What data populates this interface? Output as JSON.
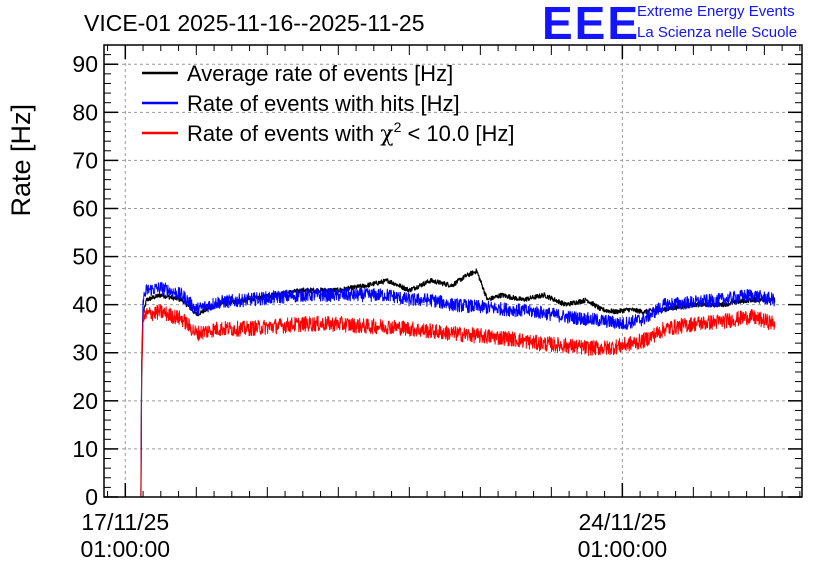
{
  "chart_data": {
    "type": "line",
    "title": "VICE-01 2025-11-16--2025-11-25",
    "logo": {
      "mark": "EEE",
      "line1": "Extreme Energy Events",
      "line2": "La Scienza nelle Scuole"
    },
    "ylabel": "Rate [Hz]",
    "xlabel": "",
    "ylim": [
      0,
      94
    ],
    "yticks": [
      "0",
      "10",
      "20",
      "30",
      "40",
      "50",
      "60",
      "70",
      "80",
      "90"
    ],
    "xlim_days": [
      -0.3,
      9.53
    ],
    "xticks": [
      {
        "day": 0,
        "label": "17/11/25",
        "sublabel": "01:00:00"
      },
      {
        "day": 7,
        "label": "24/11/25",
        "sublabel": "01:00:00"
      }
    ],
    "grid": true,
    "legend_position": "top-left",
    "series": [
      {
        "name": "Average rate of events [Hz]",
        "color": "#000000",
        "noise": 0.5,
        "x": [
          0.22,
          0.23,
          0.25,
          0.3,
          0.5,
          0.8,
          1.0,
          1.3,
          1.7,
          2.1,
          2.5,
          3.0,
          3.4,
          3.7,
          4.0,
          4.3,
          4.6,
          4.8,
          4.95,
          5.1,
          5.3,
          5.6,
          5.9,
          6.2,
          6.5,
          6.7,
          6.9,
          7.1,
          7.3,
          7.6,
          8.0,
          8.4,
          8.8,
          9.15
        ],
        "y": [
          0,
          25,
          38,
          41,
          42,
          41,
          38,
          40,
          41,
          42,
          43,
          43,
          44,
          45,
          43,
          45,
          44,
          46,
          47,
          41,
          42,
          41,
          42,
          40,
          41,
          39,
          38.5,
          39,
          38.5,
          39,
          40,
          40,
          41,
          41
        ]
      },
      {
        "name": "Rate of events with hits [Hz]",
        "color": "#0000ff",
        "noise": 1.4,
        "x": [
          0.22,
          0.23,
          0.25,
          0.3,
          0.5,
          0.8,
          1.0,
          1.3,
          1.7,
          2.1,
          2.5,
          3.0,
          3.4,
          3.7,
          4.0,
          4.3,
          4.6,
          5.0,
          5.4,
          5.8,
          6.2,
          6.5,
          6.8,
          7.0,
          7.3,
          7.6,
          8.0,
          8.4,
          8.8,
          9.15
        ],
        "y": [
          0,
          28,
          41,
          43,
          43.5,
          42,
          39,
          40.5,
          41,
          41.5,
          42,
          42,
          42,
          42,
          41,
          41,
          40,
          39.5,
          39,
          38.5,
          37.5,
          37,
          36.5,
          36,
          37,
          40,
          40.5,
          41,
          42,
          41
        ]
      },
      {
        "name": "Rate of events with χ² < 10.0 [Hz]",
        "color": "#ff0000",
        "noise": 1.6,
        "x": [
          0.22,
          0.23,
          0.25,
          0.3,
          0.5,
          0.8,
          1.0,
          1.3,
          1.7,
          2.1,
          2.5,
          3.0,
          3.4,
          3.7,
          4.0,
          4.3,
          4.6,
          5.0,
          5.4,
          5.8,
          6.2,
          6.5,
          6.8,
          7.0,
          7.3,
          7.6,
          8.0,
          8.4,
          8.8,
          9.15
        ],
        "y": [
          0,
          26,
          37,
          38,
          38.5,
          37,
          34,
          35,
          35,
          35.5,
          36,
          36,
          35.5,
          35.5,
          35,
          34.5,
          34,
          33.5,
          33,
          32,
          31.5,
          31,
          31,
          31.5,
          32.5,
          35,
          36,
          36.5,
          37.5,
          36
        ]
      }
    ],
    "legend_entries": [
      {
        "text": "Average rate of events [Hz]",
        "color": "#000000"
      },
      {
        "text": "Rate of events with hits [Hz]",
        "color": "#0000ff"
      },
      {
        "text": "Rate of events with",
        "chi": "χ",
        "sup": "2",
        "tail": "< 10.0 [Hz]",
        "color": "#ff0000"
      }
    ]
  }
}
